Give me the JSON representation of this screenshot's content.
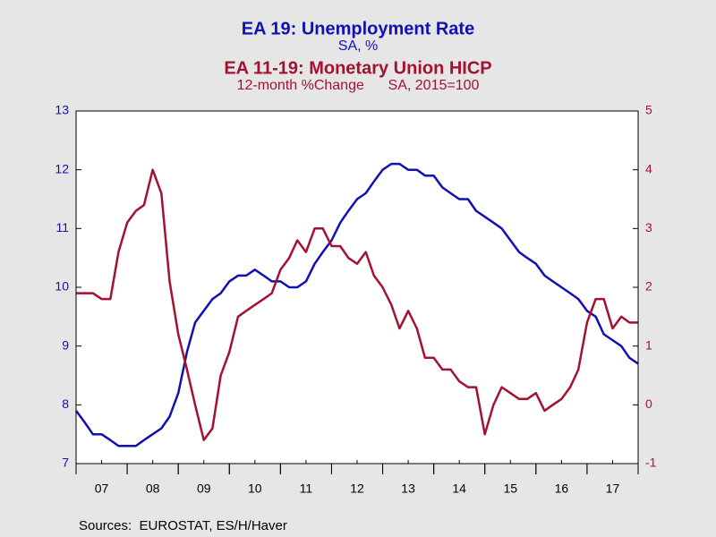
{
  "chart_data": {
    "type": "line",
    "title": "EA 19: Unemployment Rate",
    "subtitle": "SA, %",
    "title2": "EA 11-19: Monetary Union HICP",
    "subtitle2": "12-month %Change      SA, 2015=100",
    "source": "Sources:  EUROSTAT, ES/H/Haver",
    "xlim": [
      2007,
      2018
    ],
    "xticks": [
      {
        "value": 2007.5,
        "label": "07"
      },
      {
        "value": 2008.5,
        "label": "08"
      },
      {
        "value": 2009.5,
        "label": "09"
      },
      {
        "value": 2010.5,
        "label": "10"
      },
      {
        "value": 2011.5,
        "label": "11"
      },
      {
        "value": 2012.5,
        "label": "12"
      },
      {
        "value": 2013.5,
        "label": "13"
      },
      {
        "value": 2014.5,
        "label": "14"
      },
      {
        "value": 2015.5,
        "label": "15"
      },
      {
        "value": 2016.5,
        "label": "16"
      },
      {
        "value": 2017.5,
        "label": "17"
      }
    ],
    "ylim": [
      7,
      13
    ],
    "yticks": [
      7,
      8,
      9,
      10,
      11,
      12,
      13
    ],
    "y2lim": [
      -1,
      5
    ],
    "y2ticks": [
      -1,
      0,
      1,
      2,
      3,
      4,
      5
    ],
    "x": [
      2007.0,
      2007.17,
      2007.33,
      2007.5,
      2007.67,
      2007.83,
      2008.0,
      2008.17,
      2008.33,
      2008.5,
      2008.67,
      2008.83,
      2009.0,
      2009.17,
      2009.33,
      2009.5,
      2009.67,
      2009.83,
      2010.0,
      2010.17,
      2010.33,
      2010.5,
      2010.67,
      2010.83,
      2011.0,
      2011.17,
      2011.33,
      2011.5,
      2011.67,
      2011.83,
      2012.0,
      2012.17,
      2012.33,
      2012.5,
      2012.67,
      2012.83,
      2013.0,
      2013.17,
      2013.33,
      2013.5,
      2013.67,
      2013.83,
      2014.0,
      2014.17,
      2014.33,
      2014.5,
      2014.67,
      2014.83,
      2015.0,
      2015.17,
      2015.33,
      2015.5,
      2015.67,
      2015.83,
      2016.0,
      2016.17,
      2016.33,
      2016.5,
      2016.67,
      2016.83,
      2017.0,
      2017.17,
      2017.33,
      2017.5,
      2017.67,
      2017.83,
      2018.0
    ],
    "series": [
      {
        "name": "EA 19: Unemployment Rate",
        "color": "#1010b4",
        "axis": "y",
        "values": [
          7.9,
          7.7,
          7.5,
          7.5,
          7.4,
          7.3,
          7.3,
          7.3,
          7.4,
          7.5,
          7.6,
          7.8,
          8.2,
          8.9,
          9.4,
          9.6,
          9.8,
          9.9,
          10.1,
          10.2,
          10.2,
          10.3,
          10.2,
          10.1,
          10.1,
          10.0,
          10.0,
          10.1,
          10.4,
          10.6,
          10.8,
          11.1,
          11.3,
          11.5,
          11.6,
          11.8,
          12.0,
          12.1,
          12.1,
          12.0,
          12.0,
          11.9,
          11.9,
          11.7,
          11.6,
          11.5,
          11.5,
          11.3,
          11.2,
          11.1,
          11.0,
          10.8,
          10.6,
          10.5,
          10.4,
          10.2,
          10.1,
          10.0,
          9.9,
          9.8,
          9.6,
          9.5,
          9.2,
          9.1,
          9.0,
          8.8,
          8.7
        ]
      },
      {
        "name": "EA 11-19: Monetary Union HICP",
        "color": "#a3122e",
        "axis": "y2",
        "values": [
          1.9,
          1.9,
          1.9,
          1.8,
          1.8,
          2.6,
          3.1,
          3.3,
          3.4,
          4.0,
          3.6,
          2.1,
          1.2,
          0.6,
          0.0,
          -0.6,
          -0.4,
          0.5,
          0.9,
          1.5,
          1.6,
          1.7,
          1.8,
          1.9,
          2.3,
          2.5,
          2.8,
          2.6,
          3.0,
          3.0,
          2.7,
          2.7,
          2.5,
          2.4,
          2.6,
          2.2,
          2.0,
          1.7,
          1.3,
          1.6,
          1.3,
          0.8,
          0.8,
          0.6,
          0.6,
          0.4,
          0.3,
          0.3,
          -0.5,
          0.0,
          0.3,
          0.2,
          0.1,
          0.1,
          0.2,
          -0.1,
          0.0,
          0.1,
          0.3,
          0.6,
          1.4,
          1.8,
          1.8,
          1.3,
          1.5,
          1.4,
          1.4
        ]
      }
    ]
  }
}
